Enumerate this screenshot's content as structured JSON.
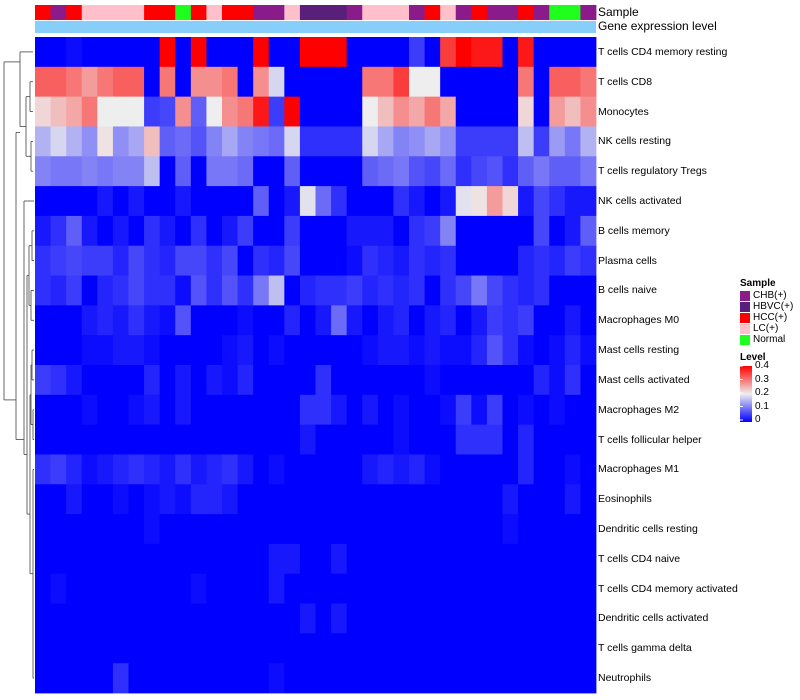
{
  "chart_data": {
    "type": "heatmap",
    "title": "",
    "annotation_tracks": [
      {
        "name": "Sample"
      },
      {
        "name": "Gene expression level"
      }
    ],
    "sample_groups": [
      "HCC(+)",
      "CHB(+)",
      "HCC(+)",
      "LC(+)",
      "LC(+)",
      "LC(+)",
      "LC(+)",
      "HCC(+)",
      "HCC(+)",
      "Normal",
      "HCC(+)",
      "LC(+)",
      "HCC(+)",
      "HCC(+)",
      "CHB(+)",
      "CHB(+)",
      "LC(+)",
      "HBVC(+)",
      "HBVC(+)",
      "HBVC(+)",
      "CHB(+)",
      "LC(+)",
      "LC(+)",
      "LC(+)",
      "CHB(+)",
      "HCC(+)",
      "LC(+)",
      "CHB(+)",
      "HCC(+)",
      "CHB(+)",
      "CHB(+)",
      "HCC(+)",
      "CHB(+)",
      "Normal",
      "Normal",
      "CHB(+)"
    ],
    "rows": [
      "T cells CD4 memory resting",
      "T cells CD8",
      "Monocytes",
      "NK cells resting",
      "T cells regulatory  Tregs",
      "NK cells activated",
      "B cells memory",
      "Plasma cells",
      "B cells naive",
      "Macrophages M0",
      "Mast cells resting",
      "Mast cells activated",
      "Macrophages M2",
      "T cells follicular helper",
      "Macrophages M1",
      "Eosinophils",
      "Dendritic cells resting",
      "T cells CD4 naive",
      "T cells CD4 memory activated",
      "Dendritic cells activated",
      "T cells gamma delta",
      "Neutrophils"
    ],
    "values": [
      [
        0,
        0,
        0.01,
        0,
        0,
        0,
        0,
        0,
        0.4,
        0,
        0.4,
        0,
        0,
        0,
        0.4,
        0,
        0,
        0.4,
        0.4,
        0.4,
        0,
        0,
        0,
        0,
        0.05,
        0,
        0.35,
        0.4,
        0.38,
        0.38,
        0,
        0.38,
        0,
        0,
        0,
        0
      ],
      [
        0.32,
        0.32,
        0.3,
        0.27,
        0.3,
        0.32,
        0.32,
        0,
        0.3,
        0,
        0.28,
        0.28,
        0.3,
        0,
        0.28,
        0.18,
        0,
        0,
        0,
        0,
        0,
        0.3,
        0.3,
        0.35,
        0.2,
        0.2,
        0,
        0,
        0,
        0,
        0,
        0.3,
        0,
        0.32,
        0.32,
        0.3
      ],
      [
        0.22,
        0.24,
        0.26,
        0.3,
        0.2,
        0.2,
        0.2,
        0.05,
        0.06,
        0.28,
        0.08,
        0.2,
        0.28,
        0.3,
        0.38,
        0.05,
        0.4,
        0,
        0,
        0,
        0,
        0.2,
        0.24,
        0.28,
        0.26,
        0.3,
        0.26,
        0,
        0,
        0,
        0,
        0.22,
        0,
        0.27,
        0.24,
        0.28
      ],
      [
        0.15,
        0.18,
        0.15,
        0.12,
        0.21,
        0.12,
        0.14,
        0.24,
        0.08,
        0.09,
        0.07,
        0.11,
        0.14,
        0.11,
        0.1,
        0.09,
        0.18,
        0.04,
        0.04,
        0.04,
        0.04,
        0.18,
        0.14,
        0.11,
        0.12,
        0.14,
        0.12,
        0.05,
        0.05,
        0.05,
        0.05,
        0.16,
        0.05,
        0.13,
        0.1,
        0.15
      ],
      [
        0.11,
        0.1,
        0.1,
        0.11,
        0.1,
        0.11,
        0.11,
        0.16,
        0,
        0.08,
        0,
        0.1,
        0.1,
        0.09,
        0,
        0,
        0.08,
        0,
        0,
        0,
        0,
        0.08,
        0.09,
        0.1,
        0.07,
        0.06,
        0.09,
        0.04,
        0.06,
        0.07,
        0.04,
        0.08,
        0.1,
        0.08,
        0.08,
        0.1
      ],
      [
        0,
        0,
        0,
        0,
        0.02,
        0,
        0.02,
        0,
        0,
        0.02,
        0,
        0,
        0,
        0,
        0.08,
        0,
        0.02,
        0.19,
        0.09,
        0.04,
        0,
        0,
        0,
        0.04,
        0.02,
        0,
        0.02,
        0.19,
        0.21,
        0.27,
        0.22,
        0.02,
        0.06,
        0.04,
        0.02,
        0.02
      ],
      [
        0.02,
        0.04,
        0.08,
        0.02,
        0,
        0.02,
        0,
        0.04,
        0.02,
        0,
        0.04,
        0,
        0.02,
        0.05,
        0,
        0,
        0.05,
        0,
        0,
        0,
        0.02,
        0.02,
        0.02,
        0,
        0.04,
        0.05,
        0.11,
        0,
        0,
        0,
        0,
        0,
        0.06,
        0,
        0.02,
        0.08
      ],
      [
        0.04,
        0.05,
        0.06,
        0.05,
        0.05,
        0.03,
        0.06,
        0.04,
        0.03,
        0.06,
        0.06,
        0.04,
        0.06,
        0,
        0.04,
        0.03,
        0.06,
        0,
        0,
        0,
        0.01,
        0.04,
        0.03,
        0.02,
        0.04,
        0.03,
        0.04,
        0,
        0,
        0,
        0,
        0.03,
        0.04,
        0.03,
        0.05,
        0.04
      ],
      [
        0.04,
        0.03,
        0.05,
        0,
        0.03,
        0.04,
        0.06,
        0.04,
        0.04,
        0.01,
        0.07,
        0.04,
        0.07,
        0.04,
        0.1,
        0.16,
        0,
        0.03,
        0.04,
        0.04,
        0.05,
        0.03,
        0.04,
        0.03,
        0.04,
        0,
        0.04,
        0.06,
        0.1,
        0.06,
        0.04,
        0.03,
        0.04,
        0,
        0,
        0
      ],
      [
        0,
        0,
        0,
        0.02,
        0.03,
        0.02,
        0.04,
        0.02,
        0.01,
        0.07,
        0,
        0,
        0,
        0.01,
        0,
        0,
        0.03,
        0,
        0.02,
        0.09,
        0.02,
        0,
        0.02,
        0.03,
        0,
        0.02,
        0.03,
        0,
        0.02,
        0.05,
        0.04,
        0.05,
        0,
        0,
        0.02,
        0
      ],
      [
        0,
        0,
        0,
        0.01,
        0.01,
        0.02,
        0.02,
        0.01,
        0,
        0,
        0,
        0,
        0.01,
        0.02,
        0,
        0.01,
        0,
        0,
        0,
        0,
        0,
        0.01,
        0.02,
        0.02,
        0.01,
        0.02,
        0.01,
        0.01,
        0.03,
        0.07,
        0.04,
        0.01,
        0,
        0.01,
        0.03,
        0.01
      ],
      [
        0.05,
        0.04,
        0.02,
        0,
        0,
        0,
        0,
        0.03,
        0,
        0.02,
        0,
        0.02,
        0.01,
        0.03,
        0,
        0,
        0,
        0,
        0.04,
        0,
        0,
        0,
        0,
        0,
        0,
        0.01,
        0,
        0,
        0,
        0,
        0,
        0,
        0.03,
        0.01,
        0.04,
        0
      ],
      [
        0,
        0,
        0,
        0.01,
        0,
        0,
        0.01,
        0.02,
        0,
        0.02,
        0,
        0,
        0,
        0,
        0,
        0,
        0,
        0.04,
        0.04,
        0.02,
        0,
        0.02,
        0,
        0.01,
        0,
        0,
        0.01,
        0.05,
        0.01,
        0.05,
        0,
        0.01,
        0,
        0.01,
        0,
        0
      ],
      [
        0,
        0,
        0,
        0,
        0,
        0,
        0,
        0,
        0,
        0,
        0,
        0,
        0,
        0,
        0,
        0,
        0,
        0.02,
        0,
        0,
        0,
        0,
        0,
        0.01,
        0,
        0,
        0,
        0.04,
        0.04,
        0.04,
        0,
        0.03,
        0,
        0,
        0,
        0
      ],
      [
        0.04,
        0.05,
        0.03,
        0.01,
        0.02,
        0.03,
        0.04,
        0.03,
        0.02,
        0.04,
        0.02,
        0.03,
        0.04,
        0.02,
        0,
        0.01,
        0,
        0,
        0,
        0,
        0,
        0.02,
        0.03,
        0.02,
        0.03,
        0.01,
        0,
        0,
        0,
        0,
        0,
        0.03,
        0,
        0,
        0.01,
        0
      ],
      [
        0,
        0,
        0.02,
        0,
        0,
        0.01,
        0,
        0.01,
        0.02,
        0.01,
        0.03,
        0.03,
        0.02,
        0,
        0,
        0,
        0,
        0,
        0,
        0,
        0,
        0,
        0,
        0,
        0,
        0,
        0,
        0,
        0,
        0,
        0.02,
        0,
        0,
        0,
        0.02,
        0
      ],
      [
        0,
        0,
        0,
        0,
        0,
        0,
        0,
        0.01,
        0,
        0,
        0,
        0,
        0,
        0,
        0,
        0,
        0,
        0,
        0,
        0,
        0,
        0,
        0,
        0,
        0,
        0,
        0,
        0,
        0,
        0,
        0.01,
        0,
        0,
        0,
        0,
        0
      ],
      [
        0,
        0,
        0,
        0,
        0,
        0,
        0,
        0,
        0,
        0,
        0,
        0,
        0,
        0,
        0,
        0.02,
        0.02,
        0,
        0,
        0.02,
        0,
        0,
        0,
        0,
        0,
        0,
        0,
        0,
        0,
        0,
        0,
        0,
        0,
        0,
        0,
        0
      ],
      [
        0,
        0.01,
        0,
        0,
        0,
        0,
        0,
        0,
        0,
        0,
        0.01,
        0,
        0,
        0,
        0,
        0.02,
        0,
        0,
        0,
        0,
        0,
        0,
        0,
        0,
        0,
        0,
        0,
        0,
        0,
        0,
        0,
        0,
        0,
        0,
        0,
        0
      ],
      [
        0,
        0,
        0,
        0,
        0,
        0,
        0,
        0,
        0,
        0,
        0,
        0,
        0,
        0,
        0,
        0,
        0,
        0.02,
        0,
        0.02,
        0,
        0,
        0,
        0,
        0,
        0,
        0,
        0,
        0,
        0,
        0,
        0,
        0,
        0,
        0,
        0
      ],
      [
        0,
        0,
        0,
        0,
        0,
        0,
        0,
        0,
        0,
        0,
        0,
        0,
        0,
        0,
        0,
        0,
        0,
        0,
        0,
        0,
        0,
        0,
        0,
        0,
        0,
        0,
        0,
        0,
        0,
        0,
        0,
        0,
        0,
        0,
        0,
        0
      ],
      [
        0,
        0,
        0,
        0,
        0,
        0.04,
        0,
        0,
        0,
        0,
        0,
        0,
        0,
        0,
        0,
        0.01,
        0,
        0,
        0,
        0,
        0,
        0,
        0,
        0,
        0,
        0,
        0,
        0,
        0,
        0,
        0,
        0,
        0,
        0,
        0,
        0
      ]
    ],
    "color_scale": {
      "min": 0,
      "max": 0.4,
      "low": "#0000ff",
      "mid": "#eeeeee",
      "high": "#ff0000",
      "mid_value": 0.2
    },
    "expression_bar_color": "#87cefa",
    "legend": {
      "sample": {
        "title": "Sample",
        "items": [
          {
            "label": "CHB(+)",
            "color": "#8b1a8b"
          },
          {
            "label": "HBVC(+)",
            "color": "#5a1f7a"
          },
          {
            "label": "HCC(+)",
            "color": "#ff0000"
          },
          {
            "label": "LC(+)",
            "color": "#ffc0cb"
          },
          {
            "label": "Normal",
            "color": "#1eff1e"
          }
        ]
      },
      "level": {
        "title": "Level",
        "ticks": [
          "0.4",
          "0.3",
          "0.2",
          "0.1",
          "0"
        ]
      }
    }
  }
}
